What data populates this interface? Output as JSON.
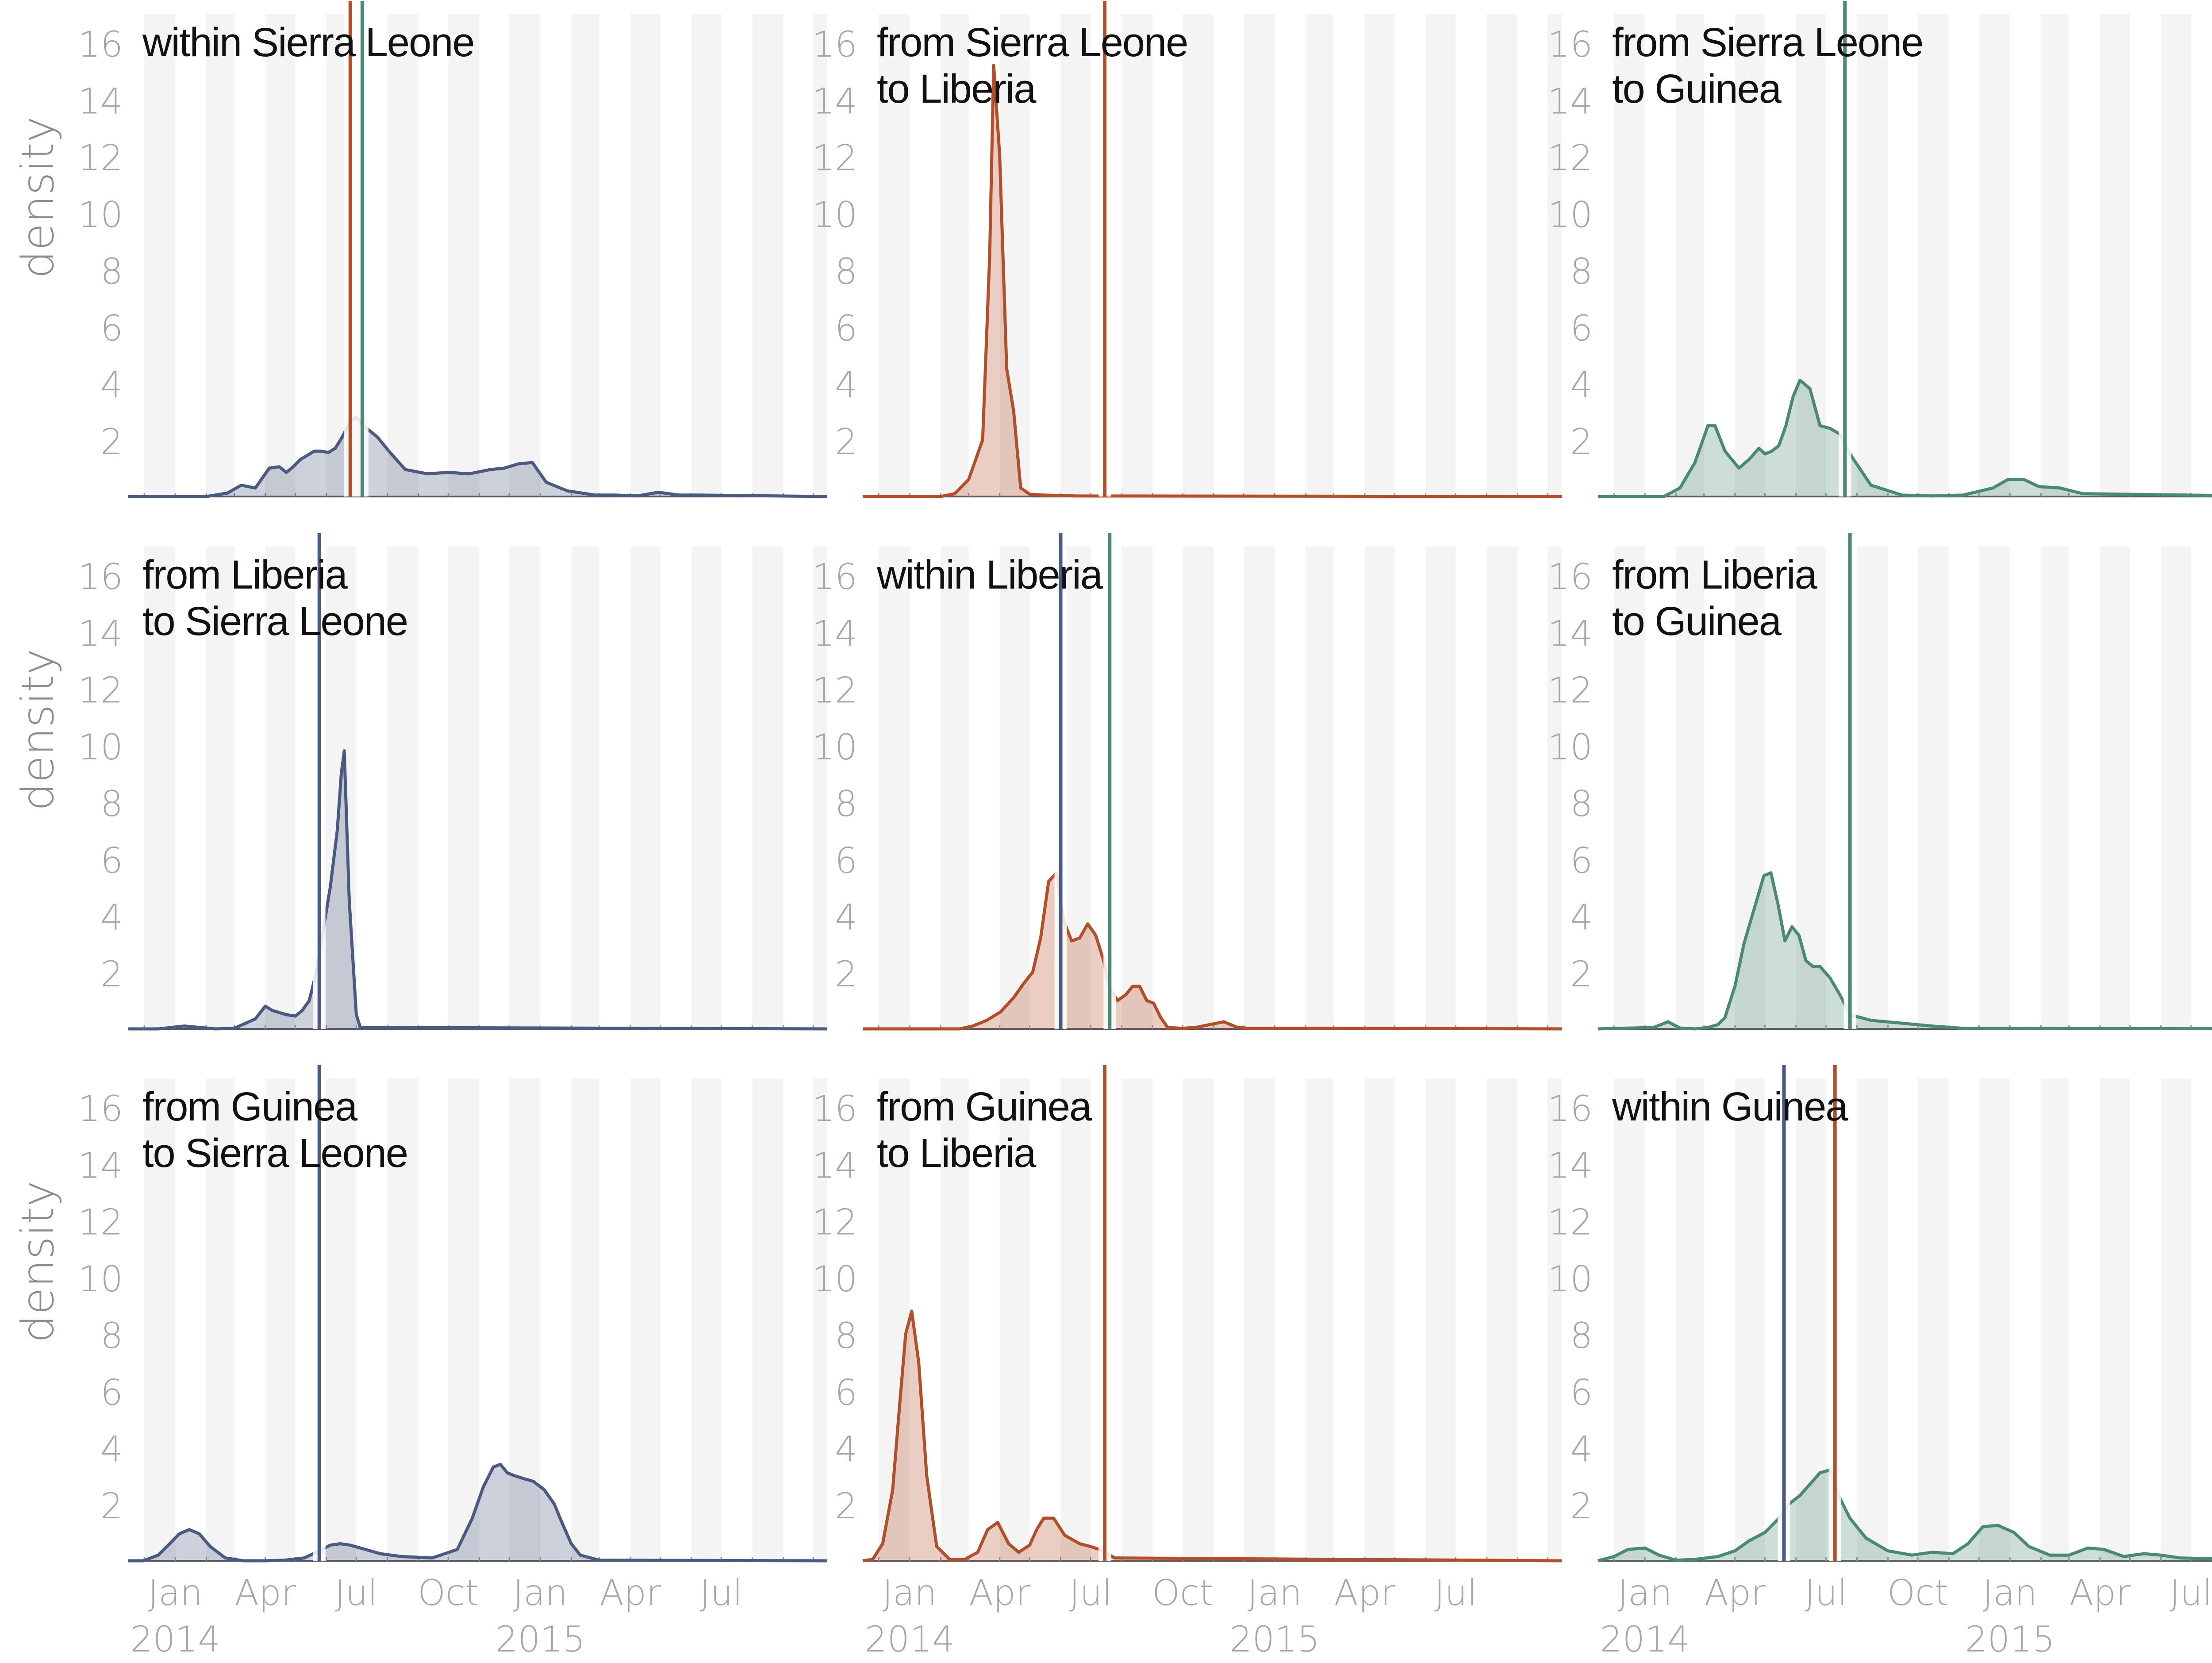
{
  "chart_data": {
    "type": "area",
    "layout": "3x3 grid of panels",
    "ylabel": "density",
    "ylim": [
      0,
      17
    ],
    "yticks": [
      2,
      4,
      6,
      8,
      10,
      12,
      14,
      16
    ],
    "xlim": [
      "2013-11-15",
      "2015-10-15"
    ],
    "xticks": [
      {
        "date": "2014-01-01",
        "month": "Jan",
        "year": "2014"
      },
      {
        "date": "2014-04-01",
        "month": "Apr",
        "year": ""
      },
      {
        "date": "2014-07-01",
        "month": "Jul",
        "year": ""
      },
      {
        "date": "2014-10-01",
        "month": "Oct",
        "year": ""
      },
      {
        "date": "2015-01-01",
        "month": "Jan",
        "year": "2015"
      },
      {
        "date": "2015-04-01",
        "month": "Apr",
        "year": ""
      },
      {
        "date": "2015-07-01",
        "month": "Jul",
        "year": ""
      }
    ],
    "grid": "alternating light-gray monthly bands",
    "colors": {
      "Sierra Leone": "#4a5a80",
      "Liberia": "#b24f2a",
      "Guinea": "#4b8a72",
      "band": "#f4f4f4",
      "baseline": "#555566"
    },
    "panels": [
      {
        "title": [
          "within Sierra Leone"
        ],
        "color": "Sierra Leone",
        "vlines": [
          {
            "date": "2014-06-25",
            "color": "Liberia"
          },
          {
            "date": "2014-07-07",
            "color": "Guinea"
          }
        ],
        "x": [
          "2013-11-15",
          "2014-02-01",
          "2014-02-22",
          "2014-03-08",
          "2014-03-22",
          "2014-04-05",
          "2014-04-15",
          "2014-04-22",
          "2014-04-29",
          "2014-05-06",
          "2014-05-20",
          "2014-05-27",
          "2014-06-03",
          "2014-06-10",
          "2014-06-17",
          "2014-06-24",
          "2014-07-01",
          "2014-07-08",
          "2014-07-15",
          "2014-07-22",
          "2014-08-05",
          "2014-08-19",
          "2014-09-10",
          "2014-10-01",
          "2014-10-22",
          "2014-11-12",
          "2014-11-26",
          "2014-12-10",
          "2014-12-24",
          "2015-01-07",
          "2015-01-28",
          "2015-02-25",
          "2015-03-18",
          "2015-04-08",
          "2015-04-29",
          "2015-05-20",
          "2015-06-10",
          "2015-10-15"
        ],
        "y": [
          0,
          0,
          0.12,
          0.4,
          0.3,
          1.0,
          1.05,
          0.85,
          1.05,
          1.3,
          1.6,
          1.6,
          1.55,
          1.7,
          2.1,
          2.6,
          2.8,
          2.5,
          2.3,
          2.1,
          1.5,
          0.95,
          0.8,
          0.85,
          0.8,
          0.95,
          1.0,
          1.15,
          1.2,
          0.5,
          0.2,
          0.05,
          0.05,
          0.02,
          0.15,
          0.05,
          0.05,
          0
        ]
      },
      {
        "title": [
          "from Sierra Leone",
          "to Liberia"
        ],
        "color": "Liberia",
        "vlines": [
          {
            "date": "2014-07-15",
            "color": "Liberia"
          }
        ],
        "x": [
          "2013-11-15",
          "2014-02-01",
          "2014-02-15",
          "2014-03-01",
          "2014-03-15",
          "2014-03-22",
          "2014-03-26",
          "2014-04-01",
          "2014-04-08",
          "2014-04-15",
          "2014-04-22",
          "2014-05-01",
          "2014-05-15",
          "2014-06-15",
          "2015-10-15"
        ],
        "y": [
          0,
          0,
          0.1,
          0.6,
          2.0,
          8.5,
          15.2,
          12.0,
          4.5,
          3.0,
          0.3,
          0.08,
          0.05,
          0.02,
          0
        ]
      },
      {
        "title": [
          "from Sierra Leone",
          "to Guinea"
        ],
        "color": "Guinea",
        "vlines": [
          {
            "date": "2014-07-20",
            "color": "Guinea"
          }
        ],
        "x": [
          "2013-11-15",
          "2014-01-20",
          "2014-02-05",
          "2014-02-20",
          "2014-03-05",
          "2014-03-12",
          "2014-03-22",
          "2014-04-05",
          "2014-04-15",
          "2014-04-25",
          "2014-05-01",
          "2014-05-08",
          "2014-05-15",
          "2014-05-22",
          "2014-05-29",
          "2014-06-05",
          "2014-06-15",
          "2014-06-25",
          "2014-07-05",
          "2014-07-15",
          "2014-07-25",
          "2014-08-15",
          "2014-09-15",
          "2014-10-15",
          "2014-11-15",
          "2014-12-15",
          "2014-12-30",
          "2015-01-15",
          "2015-01-30",
          "2015-02-20",
          "2015-03-15",
          "2015-10-15"
        ],
        "y": [
          0,
          0,
          0.3,
          1.2,
          2.5,
          2.5,
          1.6,
          1.0,
          1.3,
          1.7,
          1.5,
          1.6,
          1.8,
          2.5,
          3.5,
          4.1,
          3.8,
          2.5,
          2.4,
          2.2,
          1.5,
          0.4,
          0.05,
          0.02,
          0.05,
          0.3,
          0.6,
          0.6,
          0.35,
          0.3,
          0.1,
          0
        ]
      },
      {
        "title": [
          "from Liberia",
          "to Sierra Leone"
        ],
        "color": "Sierra Leone",
        "vlines": [
          {
            "date": "2014-05-25",
            "color": "Sierra Leone"
          }
        ],
        "x": [
          "2013-11-15",
          "2013-12-15",
          "2014-01-10",
          "2014-02-10",
          "2014-03-01",
          "2014-03-22",
          "2014-04-01",
          "2014-04-08",
          "2014-04-22",
          "2014-05-01",
          "2014-05-08",
          "2014-05-15",
          "2014-05-22",
          "2014-05-29",
          "2014-06-05",
          "2014-06-12",
          "2014-06-16",
          "2014-06-19",
          "2014-06-24",
          "2014-07-01",
          "2014-07-05",
          "2015-10-15"
        ],
        "y": [
          0,
          0,
          0.1,
          0,
          0.02,
          0.35,
          0.8,
          0.65,
          0.5,
          0.45,
          0.65,
          1.0,
          2.0,
          3.5,
          5.0,
          7.0,
          9.0,
          9.8,
          4.5,
          0.5,
          0.05,
          0
        ]
      },
      {
        "title": [
          "within Liberia"
        ],
        "color": "Liberia",
        "vlines": [
          {
            "date": "2014-06-01",
            "color": "Sierra Leone"
          },
          {
            "date": "2014-07-20",
            "color": "Guinea"
          }
        ],
        "x": [
          "2013-11-15",
          "2014-02-20",
          "2014-03-05",
          "2014-03-19",
          "2014-04-02",
          "2014-04-15",
          "2014-04-25",
          "2014-05-04",
          "2014-05-12",
          "2014-05-20",
          "2014-05-28",
          "2014-06-04",
          "2014-06-12",
          "2014-06-20",
          "2014-06-28",
          "2014-07-06",
          "2014-07-14",
          "2014-07-20",
          "2014-07-28",
          "2014-08-05",
          "2014-08-12",
          "2014-08-19",
          "2014-08-26",
          "2014-09-02",
          "2014-09-09",
          "2014-09-16",
          "2014-09-30",
          "2014-10-14",
          "2014-10-28",
          "2014-11-11",
          "2014-11-25",
          "2014-12-09",
          "2015-01-06",
          "2015-10-15"
        ],
        "y": [
          0,
          0,
          0.1,
          0.3,
          0.6,
          1.1,
          1.6,
          2.0,
          3.2,
          5.2,
          5.5,
          3.8,
          3.1,
          3.2,
          3.7,
          3.3,
          2.4,
          1.4,
          1.0,
          1.2,
          1.5,
          1.5,
          1.0,
          0.9,
          0.4,
          0.05,
          0.02,
          0.05,
          0.15,
          0.25,
          0.05,
          0.01,
          0.02,
          0
        ]
      },
      {
        "title": [
          "from Liberia",
          "to Guinea"
        ],
        "color": "Guinea",
        "vlines": [
          {
            "date": "2014-07-25",
            "color": "Guinea"
          }
        ],
        "x": [
          "2013-11-15",
          "2014-01-10",
          "2014-01-24",
          "2014-02-05",
          "2014-02-20",
          "2014-03-05",
          "2014-03-15",
          "2014-03-22",
          "2014-04-01",
          "2014-04-10",
          "2014-04-20",
          "2014-04-30",
          "2014-05-07",
          "2014-05-14",
          "2014-05-21",
          "2014-05-28",
          "2014-06-04",
          "2014-06-11",
          "2014-06-18",
          "2014-06-25",
          "2014-07-05",
          "2014-07-15",
          "2014-07-25",
          "2014-08-15",
          "2014-09-15",
          "2014-10-15",
          "2014-11-15",
          "2015-10-15"
        ],
        "y": [
          0,
          0.05,
          0.25,
          0.03,
          0.0,
          0.05,
          0.15,
          0.4,
          1.5,
          3.0,
          4.2,
          5.4,
          5.5,
          4.4,
          3.1,
          3.6,
          3.3,
          2.4,
          2.2,
          2.2,
          1.8,
          1.2,
          0.5,
          0.3,
          0.2,
          0.1,
          0.02,
          0
        ]
      },
      {
        "title": [
          "from Guinea",
          "to Sierra Leone"
        ],
        "color": "Sierra Leone",
        "vlines": [
          {
            "date": "2014-05-25",
            "color": "Sierra Leone"
          }
        ],
        "x": [
          "2013-11-15",
          "2013-11-30",
          "2013-12-15",
          "2013-12-25",
          "2014-01-05",
          "2014-01-15",
          "2014-01-25",
          "2014-02-05",
          "2014-02-20",
          "2014-03-10",
          "2014-04-01",
          "2014-04-20",
          "2014-05-10",
          "2014-05-25",
          "2014-06-05",
          "2014-06-15",
          "2014-06-25",
          "2014-07-10",
          "2014-07-25",
          "2014-08-15",
          "2014-09-15",
          "2014-10-10",
          "2014-10-25",
          "2014-11-05",
          "2014-11-15",
          "2014-11-22",
          "2014-11-29",
          "2014-12-06",
          "2014-12-15",
          "2014-12-25",
          "2015-01-05",
          "2015-01-15",
          "2015-01-22",
          "2015-02-01",
          "2015-02-10",
          "2015-03-01",
          "2015-10-15"
        ],
        "y": [
          0,
          0,
          0.2,
          0.55,
          0.95,
          1.1,
          0.95,
          0.5,
          0.1,
          0,
          0,
          0.02,
          0.1,
          0.35,
          0.55,
          0.6,
          0.55,
          0.4,
          0.25,
          0.15,
          0.1,
          0.4,
          1.5,
          2.6,
          3.3,
          3.4,
          3.1,
          3.0,
          2.9,
          2.8,
          2.5,
          2.0,
          1.4,
          0.6,
          0.2,
          0.02,
          0
        ]
      },
      {
        "title": [
          "from Guinea",
          "to Liberia"
        ],
        "color": "Liberia",
        "vlines": [
          {
            "date": "2014-07-15",
            "color": "Liberia"
          }
        ],
        "x": [
          "2013-11-15",
          "2013-11-25",
          "2013-12-05",
          "2013-12-15",
          "2013-12-22",
          "2013-12-28",
          "2014-01-03",
          "2014-01-10",
          "2014-01-18",
          "2014-01-28",
          "2014-02-10",
          "2014-02-25",
          "2014-03-10",
          "2014-03-20",
          "2014-03-30",
          "2014-04-10",
          "2014-04-20",
          "2014-05-01",
          "2014-05-08",
          "2014-05-15",
          "2014-05-25",
          "2014-06-05",
          "2014-06-20",
          "2014-07-01",
          "2014-07-10",
          "2014-07-25",
          "2015-10-15"
        ],
        "y": [
          0,
          0.05,
          0.6,
          2.5,
          5.5,
          8.0,
          8.8,
          7.0,
          3.0,
          0.5,
          0.05,
          0.05,
          0.3,
          1.1,
          1.35,
          0.6,
          0.3,
          0.55,
          1.1,
          1.5,
          1.5,
          0.9,
          0.6,
          0.5,
          0.4,
          0.1,
          0
        ]
      },
      {
        "title": [
          "within Guinea"
        ],
        "color": "Guinea",
        "vlines": [
          {
            "date": "2014-05-20",
            "color": "Sierra Leone"
          },
          {
            "date": "2014-07-10",
            "color": "Liberia"
          }
        ],
        "x": [
          "2013-11-15",
          "2013-12-01",
          "2013-12-15",
          "2014-01-01",
          "2014-01-15",
          "2014-02-01",
          "2014-02-20",
          "2014-03-15",
          "2014-04-01",
          "2014-04-15",
          "2014-05-01",
          "2014-05-15",
          "2014-05-25",
          "2014-06-05",
          "2014-06-15",
          "2014-06-25",
          "2014-07-05",
          "2014-07-15",
          "2014-07-25",
          "2014-08-10",
          "2014-09-01",
          "2014-09-25",
          "2014-10-15",
          "2014-11-05",
          "2014-11-20",
          "2014-12-05",
          "2014-12-20",
          "2015-01-05",
          "2015-01-20",
          "2015-02-10",
          "2015-03-01",
          "2015-03-20",
          "2015-04-05",
          "2015-04-25",
          "2015-05-15",
          "2015-06-01",
          "2015-06-20",
          "2015-10-15"
        ],
        "y": [
          0,
          0.15,
          0.4,
          0.45,
          0.2,
          0.02,
          0.05,
          0.15,
          0.35,
          0.7,
          1.0,
          1.5,
          2.0,
          2.3,
          2.7,
          3.1,
          3.2,
          2.2,
          1.5,
          0.8,
          0.35,
          0.2,
          0.3,
          0.25,
          0.6,
          1.2,
          1.25,
          1.0,
          0.5,
          0.2,
          0.2,
          0.45,
          0.4,
          0.15,
          0.25,
          0.2,
          0.1,
          0
        ]
      }
    ]
  }
}
